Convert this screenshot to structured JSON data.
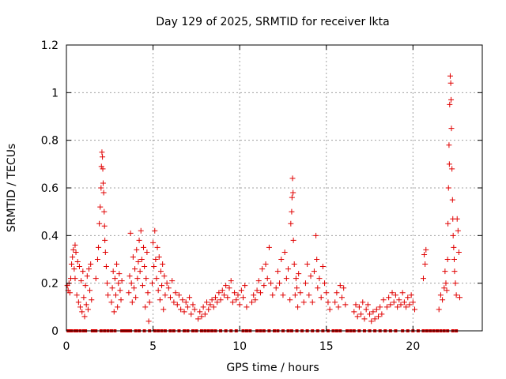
{
  "chart_data": {
    "type": "scatter",
    "title": "Day 129 of 2025, SRMTID for receiver lkta",
    "xlabel": "GPS time / hours",
    "ylabel": "SRMTID / TECUs",
    "xlim": [
      0,
      24
    ],
    "ylim": [
      0,
      1.2
    ],
    "xticks": [
      0,
      5,
      10,
      15,
      20
    ],
    "xtick_labels": [
      "0",
      "5",
      "10",
      "15",
      "20"
    ],
    "yticks": [
      0,
      0.2,
      0.4,
      0.6,
      0.8,
      1.0,
      1.2
    ],
    "ytick_labels": [
      "0",
      "0.2",
      "0.4",
      "0.6",
      "0.8",
      "1",
      "1.2"
    ],
    "grid": true,
    "marker": "+",
    "color": "#e00000",
    "series": [
      {
        "name": "SRMTID",
        "points": [
          [
            0.05,
            0.19
          ],
          [
            0.1,
            0.17
          ],
          [
            0.15,
            0.2
          ],
          [
            0.2,
            0.16
          ],
          [
            0.25,
            0.22
          ],
          [
            0.3,
            0.28
          ],
          [
            0.35,
            0.31
          ],
          [
            0.4,
            0.34
          ],
          [
            0.45,
            0.26
          ],
          [
            0.5,
            0.22
          ],
          [
            0.5,
            0.36
          ],
          [
            0.55,
            0.33
          ],
          [
            0.6,
            0.15
          ],
          [
            0.65,
            0.29
          ],
          [
            0.7,
            0.12
          ],
          [
            0.75,
            0.27
          ],
          [
            0.8,
            0.1
          ],
          [
            0.85,
            0.21
          ],
          [
            0.9,
            0.08
          ],
          [
            0.95,
            0.25
          ],
          [
            1.0,
            0.14
          ],
          [
            1.05,
            0.06
          ],
          [
            1.1,
            0.19
          ],
          [
            1.15,
            0.11
          ],
          [
            1.2,
            0.23
          ],
          [
            1.25,
            0.09
          ],
          [
            1.3,
            0.26
          ],
          [
            1.35,
            0.17
          ],
          [
            1.4,
            0.28
          ],
          [
            1.45,
            0.13
          ],
          [
            1.7,
            0.22
          ],
          [
            1.8,
            0.3
          ],
          [
            1.85,
            0.35
          ],
          [
            1.9,
            0.45
          ],
          [
            1.95,
            0.52
          ],
          [
            2.0,
            0.6
          ],
          [
            2.02,
            0.69
          ],
          [
            2.05,
            0.75
          ],
          [
            2.08,
            0.73
          ],
          [
            2.1,
            0.68
          ],
          [
            2.12,
            0.62
          ],
          [
            2.15,
            0.58
          ],
          [
            2.18,
            0.5
          ],
          [
            2.2,
            0.44
          ],
          [
            2.22,
            0.38
          ],
          [
            2.25,
            0.33
          ],
          [
            2.3,
            0.27
          ],
          [
            2.35,
            0.2
          ],
          [
            2.4,
            0.15
          ],
          [
            2.6,
            0.12
          ],
          [
            2.65,
            0.18
          ],
          [
            2.7,
            0.25
          ],
          [
            2.75,
            0.08
          ],
          [
            2.8,
            0.22
          ],
          [
            2.85,
            0.15
          ],
          [
            2.9,
            0.28
          ],
          [
            2.95,
            0.1
          ],
          [
            3.0,
            0.2
          ],
          [
            3.05,
            0.24
          ],
          [
            3.1,
            0.17
          ],
          [
            3.15,
            0.13
          ],
          [
            3.2,
            0.21
          ],
          [
            3.6,
            0.16
          ],
          [
            3.65,
            0.23
          ],
          [
            3.7,
            0.41
          ],
          [
            3.75,
            0.2
          ],
          [
            3.8,
            0.12
          ],
          [
            3.85,
            0.31
          ],
          [
            3.9,
            0.18
          ],
          [
            3.95,
            0.26
          ],
          [
            4.0,
            0.14
          ],
          [
            4.05,
            0.34
          ],
          [
            4.1,
            0.22
          ],
          [
            4.15,
            0.29
          ],
          [
            4.2,
            0.38
          ],
          [
            4.25,
            0.25
          ],
          [
            4.3,
            0.42
          ],
          [
            4.35,
            0.3
          ],
          [
            4.4,
            0.19
          ],
          [
            4.45,
            0.35
          ],
          [
            4.5,
            0.27
          ],
          [
            4.55,
            0.1
          ],
          [
            4.6,
            0.22
          ],
          [
            4.65,
            0.33
          ],
          [
            4.7,
            0.16
          ],
          [
            4.75,
            0.04
          ],
          [
            4.8,
            0.12
          ],
          [
            4.95,
            0.2
          ],
          [
            5.0,
            0.37
          ],
          [
            5.05,
            0.27
          ],
          [
            5.1,
            0.42
          ],
          [
            5.15,
            0.3
          ],
          [
            5.2,
            0.22
          ],
          [
            5.25,
            0.35
          ],
          [
            5.3,
            0.17
          ],
          [
            5.35,
            0.31
          ],
          [
            5.4,
            0.13
          ],
          [
            5.45,
            0.25
          ],
          [
            5.5,
            0.19
          ],
          [
            5.55,
            0.28
          ],
          [
            5.6,
            0.09
          ],
          [
            5.65,
            0.23
          ],
          [
            5.7,
            0.15
          ],
          [
            5.8,
            0.2
          ],
          [
            5.9,
            0.18
          ],
          [
            6.0,
            0.14
          ],
          [
            6.1,
            0.21
          ],
          [
            6.2,
            0.12
          ],
          [
            6.3,
            0.16
          ],
          [
            6.4,
            0.11
          ],
          [
            6.5,
            0.15
          ],
          [
            6.6,
            0.09
          ],
          [
            6.7,
            0.13
          ],
          [
            6.8,
            0.08
          ],
          [
            6.9,
            0.12
          ],
          [
            7.0,
            0.1
          ],
          [
            7.1,
            0.14
          ],
          [
            7.2,
            0.07
          ],
          [
            7.3,
            0.11
          ],
          [
            7.4,
            0.09
          ],
          [
            7.6,
            0.05
          ],
          [
            7.7,
            0.08
          ],
          [
            7.8,
            0.06
          ],
          [
            7.9,
            0.1
          ],
          [
            8.0,
            0.07
          ],
          [
            8.1,
            0.12
          ],
          [
            8.2,
            0.09
          ],
          [
            8.3,
            0.11
          ],
          [
            8.4,
            0.13
          ],
          [
            8.5,
            0.1
          ],
          [
            8.6,
            0.14
          ],
          [
            8.7,
            0.12
          ],
          [
            8.8,
            0.16
          ],
          [
            8.9,
            0.13
          ],
          [
            9.0,
            0.17
          ],
          [
            9.1,
            0.15
          ],
          [
            9.2,
            0.19
          ],
          [
            9.3,
            0.14
          ],
          [
            9.4,
            0.18
          ],
          [
            9.5,
            0.21
          ],
          [
            9.6,
            0.12
          ],
          [
            9.7,
            0.16
          ],
          [
            9.8,
            0.13
          ],
          [
            9.9,
            0.15
          ],
          [
            10.0,
            0.11
          ],
          [
            10.1,
            0.17
          ],
          [
            10.2,
            0.14
          ],
          [
            10.3,
            0.19
          ],
          [
            10.4,
            0.1
          ],
          [
            10.7,
            0.12
          ],
          [
            10.8,
            0.15
          ],
          [
            10.9,
            0.13
          ],
          [
            11.0,
            0.17
          ],
          [
            11.1,
            0.21
          ],
          [
            11.2,
            0.16
          ],
          [
            11.3,
            0.26
          ],
          [
            11.4,
            0.19
          ],
          [
            11.5,
            0.28
          ],
          [
            11.6,
            0.22
          ],
          [
            11.7,
            0.35
          ],
          [
            11.8,
            0.2
          ],
          [
            11.9,
            0.15
          ],
          [
            12.1,
            0.18
          ],
          [
            12.2,
            0.25
          ],
          [
            12.3,
            0.2
          ],
          [
            12.4,
            0.3
          ],
          [
            12.5,
            0.15
          ],
          [
            12.6,
            0.33
          ],
          [
            12.7,
            0.22
          ],
          [
            12.8,
            0.26
          ],
          [
            12.9,
            0.13
          ],
          [
            12.95,
            0.45
          ],
          [
            13.0,
            0.5
          ],
          [
            13.02,
            0.56
          ],
          [
            13.05,
            0.64
          ],
          [
            13.08,
            0.58
          ],
          [
            13.1,
            0.38
          ],
          [
            13.15,
            0.28
          ],
          [
            13.2,
            0.15
          ],
          [
            13.25,
            0.22
          ],
          [
            13.3,
            0.18
          ],
          [
            13.35,
            0.1
          ],
          [
            13.4,
            0.24
          ],
          [
            13.5,
            0.16
          ],
          [
            13.7,
            0.12
          ],
          [
            13.8,
            0.2
          ],
          [
            13.9,
            0.28
          ],
          [
            14.0,
            0.15
          ],
          [
            14.1,
            0.23
          ],
          [
            14.2,
            0.12
          ],
          [
            14.3,
            0.25
          ],
          [
            14.4,
            0.4
          ],
          [
            14.45,
            0.3
          ],
          [
            14.5,
            0.18
          ],
          [
            14.6,
            0.22
          ],
          [
            14.7,
            0.14
          ],
          [
            14.8,
            0.27
          ],
          [
            14.9,
            0.2
          ],
          [
            15.0,
            0.16
          ],
          [
            15.1,
            0.12
          ],
          [
            15.2,
            0.09
          ],
          [
            15.5,
            0.12
          ],
          [
            15.6,
            0.16
          ],
          [
            15.7,
            0.1
          ],
          [
            15.8,
            0.19
          ],
          [
            15.9,
            0.14
          ],
          [
            16.0,
            0.18
          ],
          [
            16.1,
            0.11
          ],
          [
            16.6,
            0.08
          ],
          [
            16.7,
            0.11
          ],
          [
            16.8,
            0.06
          ],
          [
            16.9,
            0.1
          ],
          [
            17.0,
            0.07
          ],
          [
            17.1,
            0.12
          ],
          [
            17.2,
            0.05
          ],
          [
            17.3,
            0.09
          ],
          [
            17.4,
            0.11
          ],
          [
            17.5,
            0.07
          ],
          [
            17.6,
            0.04
          ],
          [
            17.7,
            0.08
          ],
          [
            17.8,
            0.05
          ],
          [
            17.9,
            0.09
          ],
          [
            18.0,
            0.06
          ],
          [
            18.1,
            0.1
          ],
          [
            18.2,
            0.07
          ],
          [
            18.3,
            0.13
          ],
          [
            18.5,
            0.1
          ],
          [
            18.6,
            0.14
          ],
          [
            18.7,
            0.11
          ],
          [
            18.8,
            0.16
          ],
          [
            18.9,
            0.12
          ],
          [
            19.0,
            0.15
          ],
          [
            19.1,
            0.1
          ],
          [
            19.2,
            0.13
          ],
          [
            19.3,
            0.11
          ],
          [
            19.4,
            0.16
          ],
          [
            19.5,
            0.12
          ],
          [
            19.6,
            0.1
          ],
          [
            19.7,
            0.14
          ],
          [
            19.8,
            0.11
          ],
          [
            19.9,
            0.15
          ],
          [
            20.0,
            0.12
          ],
          [
            20.1,
            0.09
          ],
          [
            20.6,
            0.22
          ],
          [
            20.65,
            0.32
          ],
          [
            20.7,
            0.28
          ],
          [
            20.75,
            0.34
          ],
          [
            21.5,
            0.09
          ],
          [
            21.6,
            0.15
          ],
          [
            21.7,
            0.13
          ],
          [
            21.8,
            0.18
          ],
          [
            21.85,
            0.25
          ],
          [
            21.9,
            0.2
          ],
          [
            21.95,
            0.17
          ],
          [
            22.0,
            0.3
          ],
          [
            22.02,
            0.45
          ],
          [
            22.05,
            0.6
          ],
          [
            22.08,
            0.78
          ],
          [
            22.1,
            0.7
          ],
          [
            22.12,
            0.95
          ],
          [
            22.15,
            1.07
          ],
          [
            22.18,
            1.04
          ],
          [
            22.2,
            0.97
          ],
          [
            22.22,
            0.85
          ],
          [
            22.25,
            0.68
          ],
          [
            22.28,
            0.55
          ],
          [
            22.3,
            0.47
          ],
          [
            22.32,
            0.4
          ],
          [
            22.35,
            0.35
          ],
          [
            22.38,
            0.3
          ],
          [
            22.4,
            0.25
          ],
          [
            22.45,
            0.2
          ],
          [
            22.5,
            0.15
          ],
          [
            22.55,
            0.47
          ],
          [
            22.6,
            0.42
          ],
          [
            22.65,
            0.33
          ],
          [
            22.7,
            0.14
          ]
        ]
      }
    ],
    "zero_points": [
      0.1,
      0.2,
      0.3,
      0.5,
      0.6,
      0.8,
      1.0,
      1.1,
      1.5,
      1.6,
      1.7,
      2.0,
      2.2,
      2.4,
      2.6,
      2.8,
      3.2,
      3.3,
      3.4,
      3.5,
      3.6,
      3.7,
      4.0,
      4.2,
      4.5,
      4.8,
      5.1,
      5.3,
      5.5,
      5.7,
      6.0,
      6.2,
      6.5,
      6.8,
      7.0,
      7.3,
      7.5,
      7.8,
      8.0,
      8.2,
      8.4,
      8.6,
      8.9,
      9.2,
      9.5,
      9.8,
      10.2,
      10.4,
      10.6,
      11.0,
      11.2,
      11.4,
      11.7,
      12.0,
      12.2,
      12.5,
      12.8,
      13.0,
      13.3,
      13.6,
      13.9,
      14.2,
      14.5,
      14.8,
      15.1,
      15.4,
      15.6,
      15.8,
      16.2,
      16.4,
      16.6,
      16.9,
      17.2,
      17.5,
      17.8,
      18.1,
      18.4,
      18.7,
      19.0,
      19.4,
      19.7,
      20.0,
      20.3,
      20.6,
      20.8,
      21.0,
      21.2,
      21.4,
      21.6,
      21.8,
      22.0,
      22.3,
      22.5
    ]
  }
}
